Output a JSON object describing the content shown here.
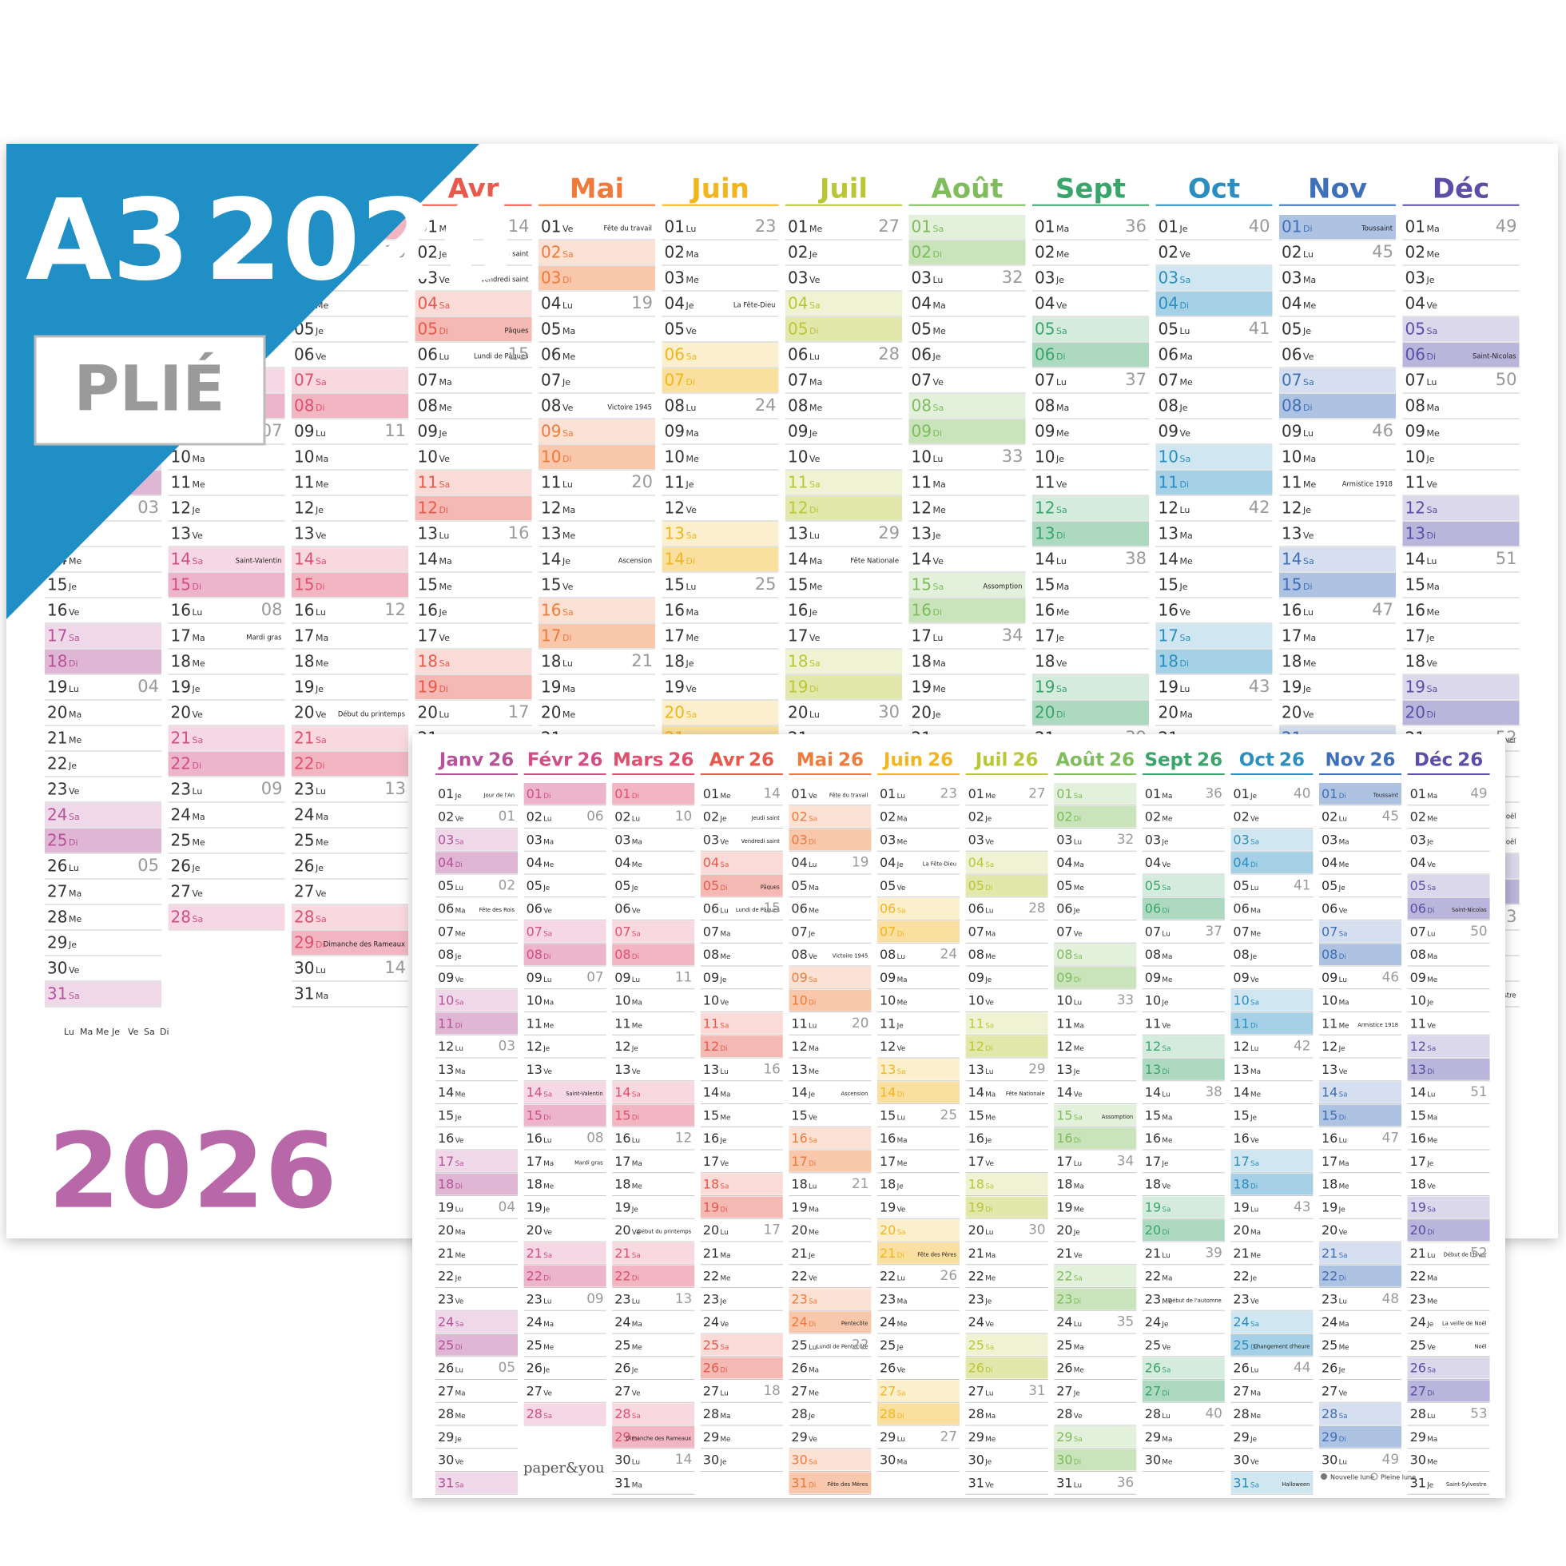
{
  "product": {
    "format": "A3",
    "year": "2026",
    "folded": "PLIÉ",
    "brand": "paper&you",
    "legend": {
      "new_moon": "Nouvelle lune",
      "full_moon": "Pleine lune"
    }
  },
  "weekdays": [
    "Lu",
    "Ma",
    "Me",
    "Je",
    "Ve",
    "Sa",
    "Di"
  ],
  "nums": [
    "01",
    "02",
    "03",
    "04",
    "05",
    "06",
    "07",
    "08",
    "09",
    "10",
    "11",
    "12",
    "13",
    "14",
    "15",
    "16",
    "17",
    "18",
    "19",
    "20",
    "21",
    "22",
    "23",
    "24",
    "25",
    "26",
    "27",
    "28",
    "29",
    "30",
    "31"
  ],
  "calendar": {
    "year_short": "26",
    "months": [
      {
        "name": "Janv",
        "color": "#b5529a",
        "days": [
          "Je",
          "Ve",
          "Sa",
          "Di",
          "Lu",
          "Ma",
          "Me",
          "Je",
          "Ve",
          "Sa",
          "Di",
          "Lu",
          "Ma",
          "Me",
          "Je",
          "Ve",
          "Sa",
          "Di",
          "Lu",
          "Ma",
          "Me",
          "Je",
          "Ve",
          "Sa",
          "Di",
          "Lu",
          "Ma",
          "Me",
          "Je",
          "Ve",
          "Sa"
        ],
        "notes": [
          {
            "day": 1,
            "text": "Jour de l'An"
          },
          {
            "day": 6,
            "text": "Fête des Rois"
          }
        ],
        "weeks": [
          {
            "day": 2,
            "label": "01"
          },
          {
            "day": 5,
            "label": "02"
          },
          {
            "day": 12,
            "label": "03"
          },
          {
            "day": 19,
            "label": "04"
          },
          {
            "day": 26,
            "label": "05"
          }
        ]
      },
      {
        "name": "Févr",
        "color": "#d14f86",
        "days": [
          "Di",
          "Lu",
          "Ma",
          "Me",
          "Je",
          "Ve",
          "Sa",
          "Di",
          "Lu",
          "Ma",
          "Me",
          "Je",
          "Ve",
          "Sa",
          "Di",
          "Lu",
          "Ma",
          "Me",
          "Je",
          "Ve",
          "Sa",
          "Di",
          "Lu",
          "Ma",
          "Me",
          "Je",
          "Ve",
          "Sa"
        ],
        "notes": [
          {
            "day": 14,
            "text": "Saint-Valentin"
          },
          {
            "day": 17,
            "text": "Mardi gras"
          }
        ],
        "weeks": [
          {
            "day": 2,
            "label": "06"
          },
          {
            "day": 9,
            "label": "07"
          },
          {
            "day": 16,
            "label": "08"
          },
          {
            "day": 23,
            "label": "09"
          }
        ]
      },
      {
        "name": "Mars",
        "color": "#e0506e",
        "days": [
          "Di",
          "Lu",
          "Ma",
          "Me",
          "Je",
          "Ve",
          "Sa",
          "Di",
          "Lu",
          "Ma",
          "Me",
          "Je",
          "Ve",
          "Sa",
          "Di",
          "Lu",
          "Ma",
          "Me",
          "Je",
          "Ve",
          "Sa",
          "Di",
          "Lu",
          "Ma",
          "Me",
          "Je",
          "Ve",
          "Sa",
          "Di",
          "Lu",
          "Ma"
        ],
        "notes": [
          {
            "day": 20,
            "text": "Début du printemps"
          },
          {
            "day": 29,
            "text": "Dimanche des Rameaux"
          }
        ],
        "weeks": [
          {
            "day": 2,
            "label": "10"
          },
          {
            "day": 9,
            "label": "11"
          },
          {
            "day": 16,
            "label": "12"
          },
          {
            "day": 23,
            "label": "13"
          },
          {
            "day": 30,
            "label": "14"
          }
        ]
      },
      {
        "name": "Avr",
        "color": "#e8594c",
        "days": [
          "Me",
          "Je",
          "Ve",
          "Sa",
          "Di",
          "Lu",
          "Ma",
          "Me",
          "Je",
          "Ve",
          "Sa",
          "Di",
          "Lu",
          "Ma",
          "Me",
          "Je",
          "Ve",
          "Sa",
          "Di",
          "Lu",
          "Ma",
          "Me",
          "Je",
          "Ve",
          "Sa",
          "Di",
          "Lu",
          "Ma",
          "Me",
          "Je"
        ],
        "notes": [
          {
            "day": 2,
            "text": "Jeudi saint"
          },
          {
            "day": 3,
            "text": "Vendredi saint"
          },
          {
            "day": 5,
            "text": "Pâques"
          },
          {
            "day": 6,
            "text": "Lundi de Pâques"
          }
        ],
        "weeks": [
          {
            "day": 1,
            "label": "14"
          },
          {
            "day": 6,
            "label": "15"
          },
          {
            "day": 13,
            "label": "16"
          },
          {
            "day": 20,
            "label": "17"
          },
          {
            "day": 27,
            "label": "18"
          }
        ]
      },
      {
        "name": "Mai",
        "color": "#f07a3a",
        "days": [
          "Ve",
          "Sa",
          "Di",
          "Lu",
          "Ma",
          "Me",
          "Je",
          "Ve",
          "Sa",
          "Di",
          "Lu",
          "Ma",
          "Me",
          "Je",
          "Ve",
          "Sa",
          "Di",
          "Lu",
          "Ma",
          "Me",
          "Je",
          "Ve",
          "Sa",
          "Di",
          "Lu",
          "Ma",
          "Me",
          "Je",
          "Ve",
          "Sa",
          "Di"
        ],
        "notes": [
          {
            "day": 1,
            "text": "Fête du travail"
          },
          {
            "day": 8,
            "text": "Victoire 1945"
          },
          {
            "day": 14,
            "text": "Ascension"
          },
          {
            "day": 24,
            "text": "Pentecôte"
          },
          {
            "day": 25,
            "text": "Lundi de Pentecôte"
          },
          {
            "day": 31,
            "text": "Fête des Mères"
          }
        ],
        "weeks": [
          {
            "day": 4,
            "label": "19"
          },
          {
            "day": 11,
            "label": "20"
          },
          {
            "day": 18,
            "label": "21"
          },
          {
            "day": 25,
            "label": "22"
          }
        ]
      },
      {
        "name": "Juin",
        "color": "#f2b51d",
        "days": [
          "Lu",
          "Ma",
          "Me",
          "Je",
          "Ve",
          "Sa",
          "Di",
          "Lu",
          "Ma",
          "Me",
          "Je",
          "Ve",
          "Sa",
          "Di",
          "Lu",
          "Ma",
          "Me",
          "Je",
          "Ve",
          "Sa",
          "Di",
          "Lu",
          "Ma",
          "Me",
          "Je",
          "Ve",
          "Sa",
          "Di",
          "Lu",
          "Ma"
        ],
        "notes": [
          {
            "day": 4,
            "text": "La Fête-Dieu"
          },
          {
            "day": 21,
            "text": "Fête des Pères"
          }
        ],
        "weeks": [
          {
            "day": 1,
            "label": "23"
          },
          {
            "day": 8,
            "label": "24"
          },
          {
            "day": 15,
            "label": "25"
          },
          {
            "day": 22,
            "label": "26"
          },
          {
            "day": 29,
            "label": "27"
          }
        ]
      },
      {
        "name": "Juil",
        "color": "#b9c736",
        "days": [
          "Me",
          "Je",
          "Ve",
          "Sa",
          "Di",
          "Lu",
          "Ma",
          "Me",
          "Je",
          "Ve",
          "Sa",
          "Di",
          "Lu",
          "Ma",
          "Me",
          "Je",
          "Ve",
          "Sa",
          "Di",
          "Lu",
          "Ma",
          "Me",
          "Je",
          "Ve",
          "Sa",
          "Di",
          "Lu",
          "Ma",
          "Me",
          "Je",
          "Ve"
        ],
        "notes": [
          {
            "day": 14,
            "text": "Fête Nationale"
          }
        ],
        "weeks": [
          {
            "day": 1,
            "label": "27"
          },
          {
            "day": 6,
            "label": "28"
          },
          {
            "day": 13,
            "label": "29"
          },
          {
            "day": 20,
            "label": "30"
          },
          {
            "day": 27,
            "label": "31"
          }
        ]
      },
      {
        "name": "Août",
        "color": "#7ebc5c",
        "days": [
          "Sa",
          "Di",
          "Lu",
          "Ma",
          "Me",
          "Je",
          "Ve",
          "Sa",
          "Di",
          "Lu",
          "Ma",
          "Me",
          "Je",
          "Ve",
          "Sa",
          "Di",
          "Lu",
          "Ma",
          "Me",
          "Je",
          "Ve",
          "Sa",
          "Di",
          "Lu",
          "Ma",
          "Me",
          "Je",
          "Ve",
          "Sa",
          "Di",
          "Lu"
        ],
        "notes": [
          {
            "day": 15,
            "text": "Assomption"
          }
        ],
        "weeks": [
          {
            "day": 3,
            "label": "32"
          },
          {
            "day": 10,
            "label": "33"
          },
          {
            "day": 17,
            "label": "34"
          },
          {
            "day": 24,
            "label": "35"
          },
          {
            "day": 31,
            "label": "36"
          }
        ]
      },
      {
        "name": "Sept",
        "color": "#3aa56a",
        "days": [
          "Ma",
          "Me",
          "Je",
          "Ve",
          "Sa",
          "Di",
          "Lu",
          "Ma",
          "Me",
          "Je",
          "Ve",
          "Sa",
          "Di",
          "Lu",
          "Ma",
          "Me",
          "Je",
          "Ve",
          "Sa",
          "Di",
          "Lu",
          "Ma",
          "Me",
          "Je",
          "Ve",
          "Sa",
          "Di",
          "Lu",
          "Ma",
          "Me"
        ],
        "notes": [
          {
            "day": 23,
            "text": "Début de l'automne"
          }
        ],
        "weeks": [
          {
            "day": 1,
            "label": "36"
          },
          {
            "day": 7,
            "label": "37"
          },
          {
            "day": 14,
            "label": "38"
          },
          {
            "day": 21,
            "label": "39"
          },
          {
            "day": 28,
            "label": "40"
          }
        ]
      },
      {
        "name": "Oct",
        "color": "#2a8fc0",
        "days": [
          "Je",
          "Ve",
          "Sa",
          "Di",
          "Lu",
          "Ma",
          "Me",
          "Je",
          "Ve",
          "Sa",
          "Di",
          "Lu",
          "Ma",
          "Me",
          "Je",
          "Ve",
          "Sa",
          "Di",
          "Lu",
          "Ma",
          "Me",
          "Je",
          "Ve",
          "Sa",
          "Di",
          "Lu",
          "Ma",
          "Me",
          "Je",
          "Ve",
          "Sa"
        ],
        "notes": [
          {
            "day": 25,
            "text": "Changement d'heure"
          },
          {
            "day": 31,
            "text": "Halloween"
          }
        ],
        "weeks": [
          {
            "day": 1,
            "label": "40"
          },
          {
            "day": 5,
            "label": "41"
          },
          {
            "day": 12,
            "label": "42"
          },
          {
            "day": 19,
            "label": "43"
          },
          {
            "day": 26,
            "label": "44"
          }
        ]
      },
      {
        "name": "Nov",
        "color": "#3f6fb8",
        "days": [
          "Di",
          "Lu",
          "Ma",
          "Me",
          "Je",
          "Ve",
          "Sa",
          "Di",
          "Lu",
          "Ma",
          "Me",
          "Je",
          "Ve",
          "Sa",
          "Di",
          "Lu",
          "Ma",
          "Me",
          "Je",
          "Ve",
          "Sa",
          "Di",
          "Lu",
          "Ma",
          "Me",
          "Je",
          "Ve",
          "Sa",
          "Di",
          "Lu"
        ],
        "notes": [
          {
            "day": 1,
            "text": "Toussaint"
          },
          {
            "day": 11,
            "text": "Armistice 1918"
          }
        ],
        "weeks": [
          {
            "day": 2,
            "label": "45"
          },
          {
            "day": 9,
            "label": "46"
          },
          {
            "day": 16,
            "label": "47"
          },
          {
            "day": 23,
            "label": "48"
          },
          {
            "day": 30,
            "label": "49"
          }
        ]
      },
      {
        "name": "Déc",
        "color": "#5a4ea6",
        "days": [
          "Ma",
          "Me",
          "Je",
          "Ve",
          "Sa",
          "Di",
          "Lu",
          "Ma",
          "Me",
          "Je",
          "Ve",
          "Sa",
          "Di",
          "Lu",
          "Ma",
          "Me",
          "Je",
          "Ve",
          "Sa",
          "Di",
          "Lu",
          "Ma",
          "Me",
          "Je",
          "Ve",
          "Sa",
          "Di",
          "Lu",
          "Ma",
          "Me",
          "Je"
        ],
        "notes": [
          {
            "day": 6,
            "text": "Saint-Nicolas"
          },
          {
            "day": 21,
            "text": "Début de l'hiver"
          },
          {
            "day": 24,
            "text": "La veille de Noël"
          },
          {
            "day": 25,
            "text": "Noël"
          },
          {
            "day": 31,
            "text": "Saint-Sylvestre"
          }
        ],
        "weeks": [
          {
            "day": 1,
            "label": "49"
          },
          {
            "day": 7,
            "label": "50"
          },
          {
            "day": 14,
            "label": "51"
          },
          {
            "day": 21,
            "label": "52"
          },
          {
            "day": 28,
            "label": "53"
          }
        ]
      }
    ]
  }
}
